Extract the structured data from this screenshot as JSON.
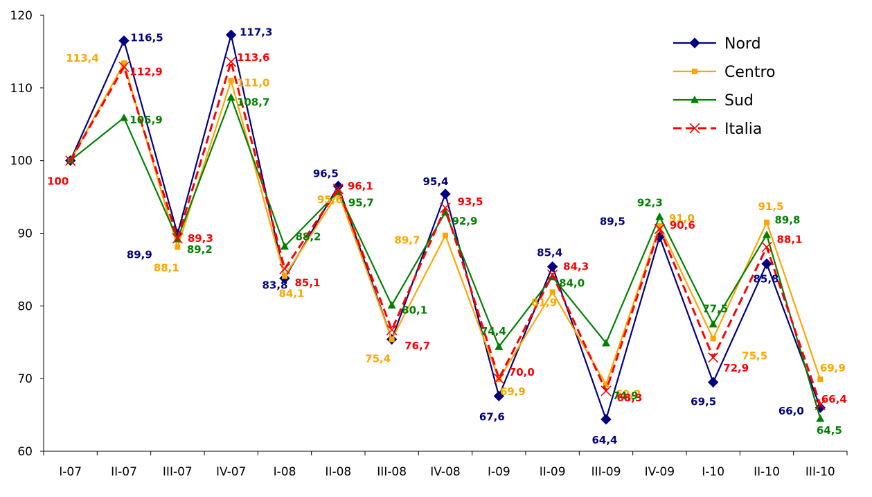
{
  "chart_data": {
    "type": "line",
    "categories": [
      "I-07",
      "II-07",
      "III-07",
      "IV-07",
      "I-08",
      "II-08",
      "III-08",
      "IV-08",
      "I-09",
      "II-09",
      "III-09",
      "IV-09",
      "I-10",
      "II-10",
      "III-10"
    ],
    "ylim": [
      60,
      120
    ],
    "yticks": [
      60,
      70,
      80,
      90,
      100,
      110,
      120
    ],
    "grid": false,
    "legend_position": "top-right",
    "series": [
      {
        "name": "Nord",
        "color": "#000080",
        "marker": "diamond",
        "line_style": "solid",
        "values": [
          100,
          116.5,
          89.9,
          117.3,
          83.8,
          96.5,
          75.4,
          95.4,
          67.6,
          85.4,
          64.4,
          89.5,
          69.5,
          85.8,
          66.0
        ],
        "labels": [
          "",
          "116,5",
          "89,9",
          "117,3",
          "83,8",
          "96,5",
          "",
          "95,4",
          "67,6",
          "85,4",
          "64,4",
          "89,5",
          "69,5",
          "85,8",
          "66,0"
        ]
      },
      {
        "name": "Centro",
        "color": "#FFA500",
        "marker": "square",
        "line_style": "solid",
        "values": [
          100,
          113.4,
          88.1,
          111.0,
          84.1,
          95.6,
          75.4,
          89.7,
          69.9,
          81.9,
          69.2,
          91.0,
          75.5,
          91.5,
          69.9
        ],
        "labels": [
          "",
          "113,4",
          "88,1",
          "111,0",
          "84,1",
          "95,6",
          "75,4",
          "89,7",
          "69,9",
          "81,9",
          "69,2",
          "91,0",
          "75,5",
          "91,5",
          "69,9"
        ]
      },
      {
        "name": "Sud",
        "color": "#008000",
        "marker": "triangle",
        "line_style": "solid",
        "values": [
          100,
          105.9,
          89.2,
          108.7,
          88.2,
          95.7,
          80.1,
          92.9,
          74.4,
          84.0,
          74.9,
          92.3,
          77.5,
          89.8,
          64.5
        ],
        "labels": [
          "",
          "105,9",
          "89,2",
          "108,7",
          "88,2",
          "95,7",
          "80,1",
          "92,9",
          "74,4",
          "84,0",
          "74,9",
          "92,3",
          "77,5",
          "89,8",
          "64,5"
        ]
      },
      {
        "name": "Italia",
        "color": "#FF0000",
        "marker": "x",
        "line_style": "dashed",
        "values": [
          100,
          112.9,
          89.3,
          113.6,
          85.1,
          96.1,
          76.7,
          93.5,
          70.0,
          84.3,
          68.3,
          90.6,
          72.9,
          88.1,
          66.4
        ],
        "labels": [
          "100",
          "112,9",
          "89,3",
          "113,6",
          "85,1",
          "96,1",
          "76,7",
          "93,5",
          "70,0",
          "84,3",
          "68,3",
          "90,6",
          "72,9",
          "88,1",
          "66,4"
        ]
      }
    ]
  }
}
